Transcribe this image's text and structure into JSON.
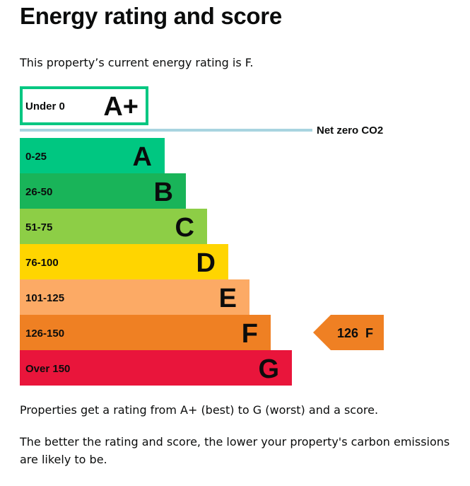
{
  "page": {
    "title": "Energy rating and score",
    "current_rating_text": "This property’s current energy rating is F.",
    "properties_text": "Properties get a rating from A+ (best) to G (worst) and a score.",
    "better_text": "The better the rating and score, the lower your property's carbon emissions are likely to be."
  },
  "chart_data": {
    "type": "bar",
    "categories": [
      "A+",
      "A",
      "B",
      "C",
      "D",
      "E",
      "F",
      "G"
    ],
    "bands": [
      {
        "letter": "A+",
        "range": "Under 0",
        "color": "#00c781",
        "style": "outline"
      },
      {
        "letter": "A",
        "range": "0-25",
        "color": "#00c781"
      },
      {
        "letter": "B",
        "range": "26-50",
        "color": "#19b459"
      },
      {
        "letter": "C",
        "range": "51-75",
        "color": "#8dce46"
      },
      {
        "letter": "D",
        "range": "76-100",
        "color": "#ffd500"
      },
      {
        "letter": "E",
        "range": "101-125",
        "color": "#fcaa65"
      },
      {
        "letter": "F",
        "range": "126-150",
        "color": "#ef8023"
      },
      {
        "letter": "G",
        "range": "Over 150",
        "color": "#e9153b"
      }
    ],
    "net_zero": {
      "label": "Net zero CO2",
      "color": "#a8d4e0"
    },
    "current": {
      "score": "126",
      "letter": "F",
      "band": "F",
      "color": "#ef8023"
    }
  }
}
